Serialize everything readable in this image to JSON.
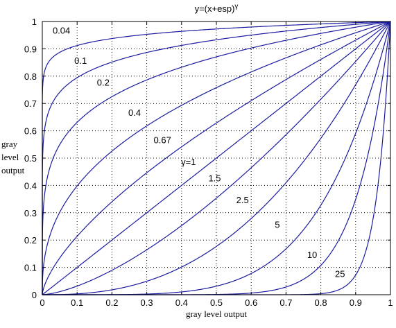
{
  "chart_data": {
    "type": "line",
    "title": "y=(x+esp)",
    "title_superscript": "γ",
    "xlabel": "gray level output",
    "ylabel": [
      "gray",
      "level",
      "output"
    ],
    "xlim": [
      0,
      1
    ],
    "ylim": [
      0,
      1
    ],
    "xticks": [
      "0",
      "0.1",
      "0.2",
      "0.3",
      "0.4",
      "0.5",
      "0.6",
      "0.7",
      "0.8",
      "0.9",
      "1"
    ],
    "yticks": [
      "0",
      "0.1",
      "0.2",
      "0.3",
      "0.4",
      "0.5",
      "0.6",
      "0.7",
      "0.8",
      "0.9",
      "1"
    ],
    "grid": "dotted",
    "line_color": "#1a1aa0",
    "series": [
      {
        "gamma": 0.04,
        "label": "0.04",
        "label_x": 0.055,
        "label_y": 0.955
      },
      {
        "gamma": 0.1,
        "label": "0.1",
        "label_x": 0.11,
        "label_y": 0.845
      },
      {
        "gamma": 0.2,
        "label": "0.2",
        "label_x": 0.175,
        "label_y": 0.765
      },
      {
        "gamma": 0.4,
        "label": "0.4",
        "label_x": 0.265,
        "label_y": 0.655
      },
      {
        "gamma": 0.67,
        "label": "0.67",
        "label_x": 0.345,
        "label_y": 0.555
      },
      {
        "gamma": 1,
        "label": "γ=1",
        "label_x": 0.42,
        "label_y": 0.475
      },
      {
        "gamma": 1.5,
        "label": "1.5",
        "label_x": 0.495,
        "label_y": 0.415
      },
      {
        "gamma": 2.5,
        "label": "2.5",
        "label_x": 0.575,
        "label_y": 0.335
      },
      {
        "gamma": 5,
        "label": "5",
        "label_x": 0.675,
        "label_y": 0.245
      },
      {
        "gamma": 10,
        "label": "10",
        "label_x": 0.775,
        "label_y": 0.135
      },
      {
        "gamma": 25,
        "label": "25",
        "label_x": 0.855,
        "label_y": 0.065
      }
    ]
  }
}
